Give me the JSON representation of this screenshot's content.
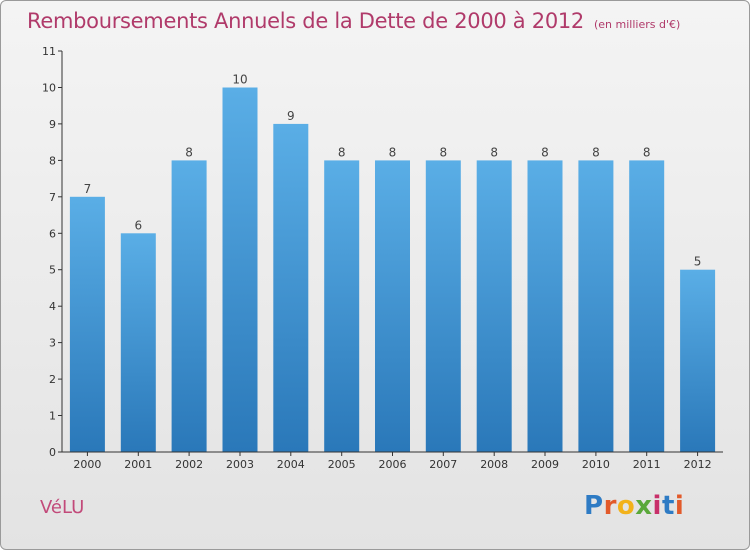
{
  "title": "Remboursements Annuels de la Dette de 2000 à 2012",
  "title_unit": "(en milliers d'€)",
  "footer_name": "VéLU",
  "logo": {
    "letters": [
      "P",
      "r",
      "o",
      "x",
      "i",
      "t",
      "i"
    ],
    "colors": [
      "#2e7bc4",
      "#e25a2a",
      "#f2b21b",
      "#5aa83a",
      "#c8306a",
      "#2e7bc4",
      "#e25a2a"
    ]
  },
  "colors": {
    "bar_top": "#5aaee6",
    "bar_bottom": "#2a78b9",
    "title": "#b03a6a",
    "axis": "#333333"
  },
  "chart_data": {
    "type": "bar",
    "title": "Remboursements Annuels de la Dette de 2000 à 2012",
    "subtitle": "(en milliers d'€)",
    "categories": [
      "2000",
      "2001",
      "2002",
      "2003",
      "2004",
      "2005",
      "2006",
      "2007",
      "2008",
      "2009",
      "2010",
      "2011",
      "2012"
    ],
    "values": [
      7,
      6,
      8,
      10,
      9,
      8,
      8,
      8,
      8,
      8,
      8,
      8,
      5
    ],
    "data_labels": [
      "7",
      "6",
      "8",
      "10",
      "9",
      "8",
      "8",
      "8",
      "8",
      "8",
      "8",
      "8",
      "5"
    ],
    "ylim": [
      0,
      11
    ],
    "yticks": [
      "0",
      "1",
      "2",
      "3",
      "4",
      "5",
      "6",
      "7",
      "8",
      "9",
      "10",
      "11"
    ],
    "grid": false,
    "legend": "none"
  }
}
